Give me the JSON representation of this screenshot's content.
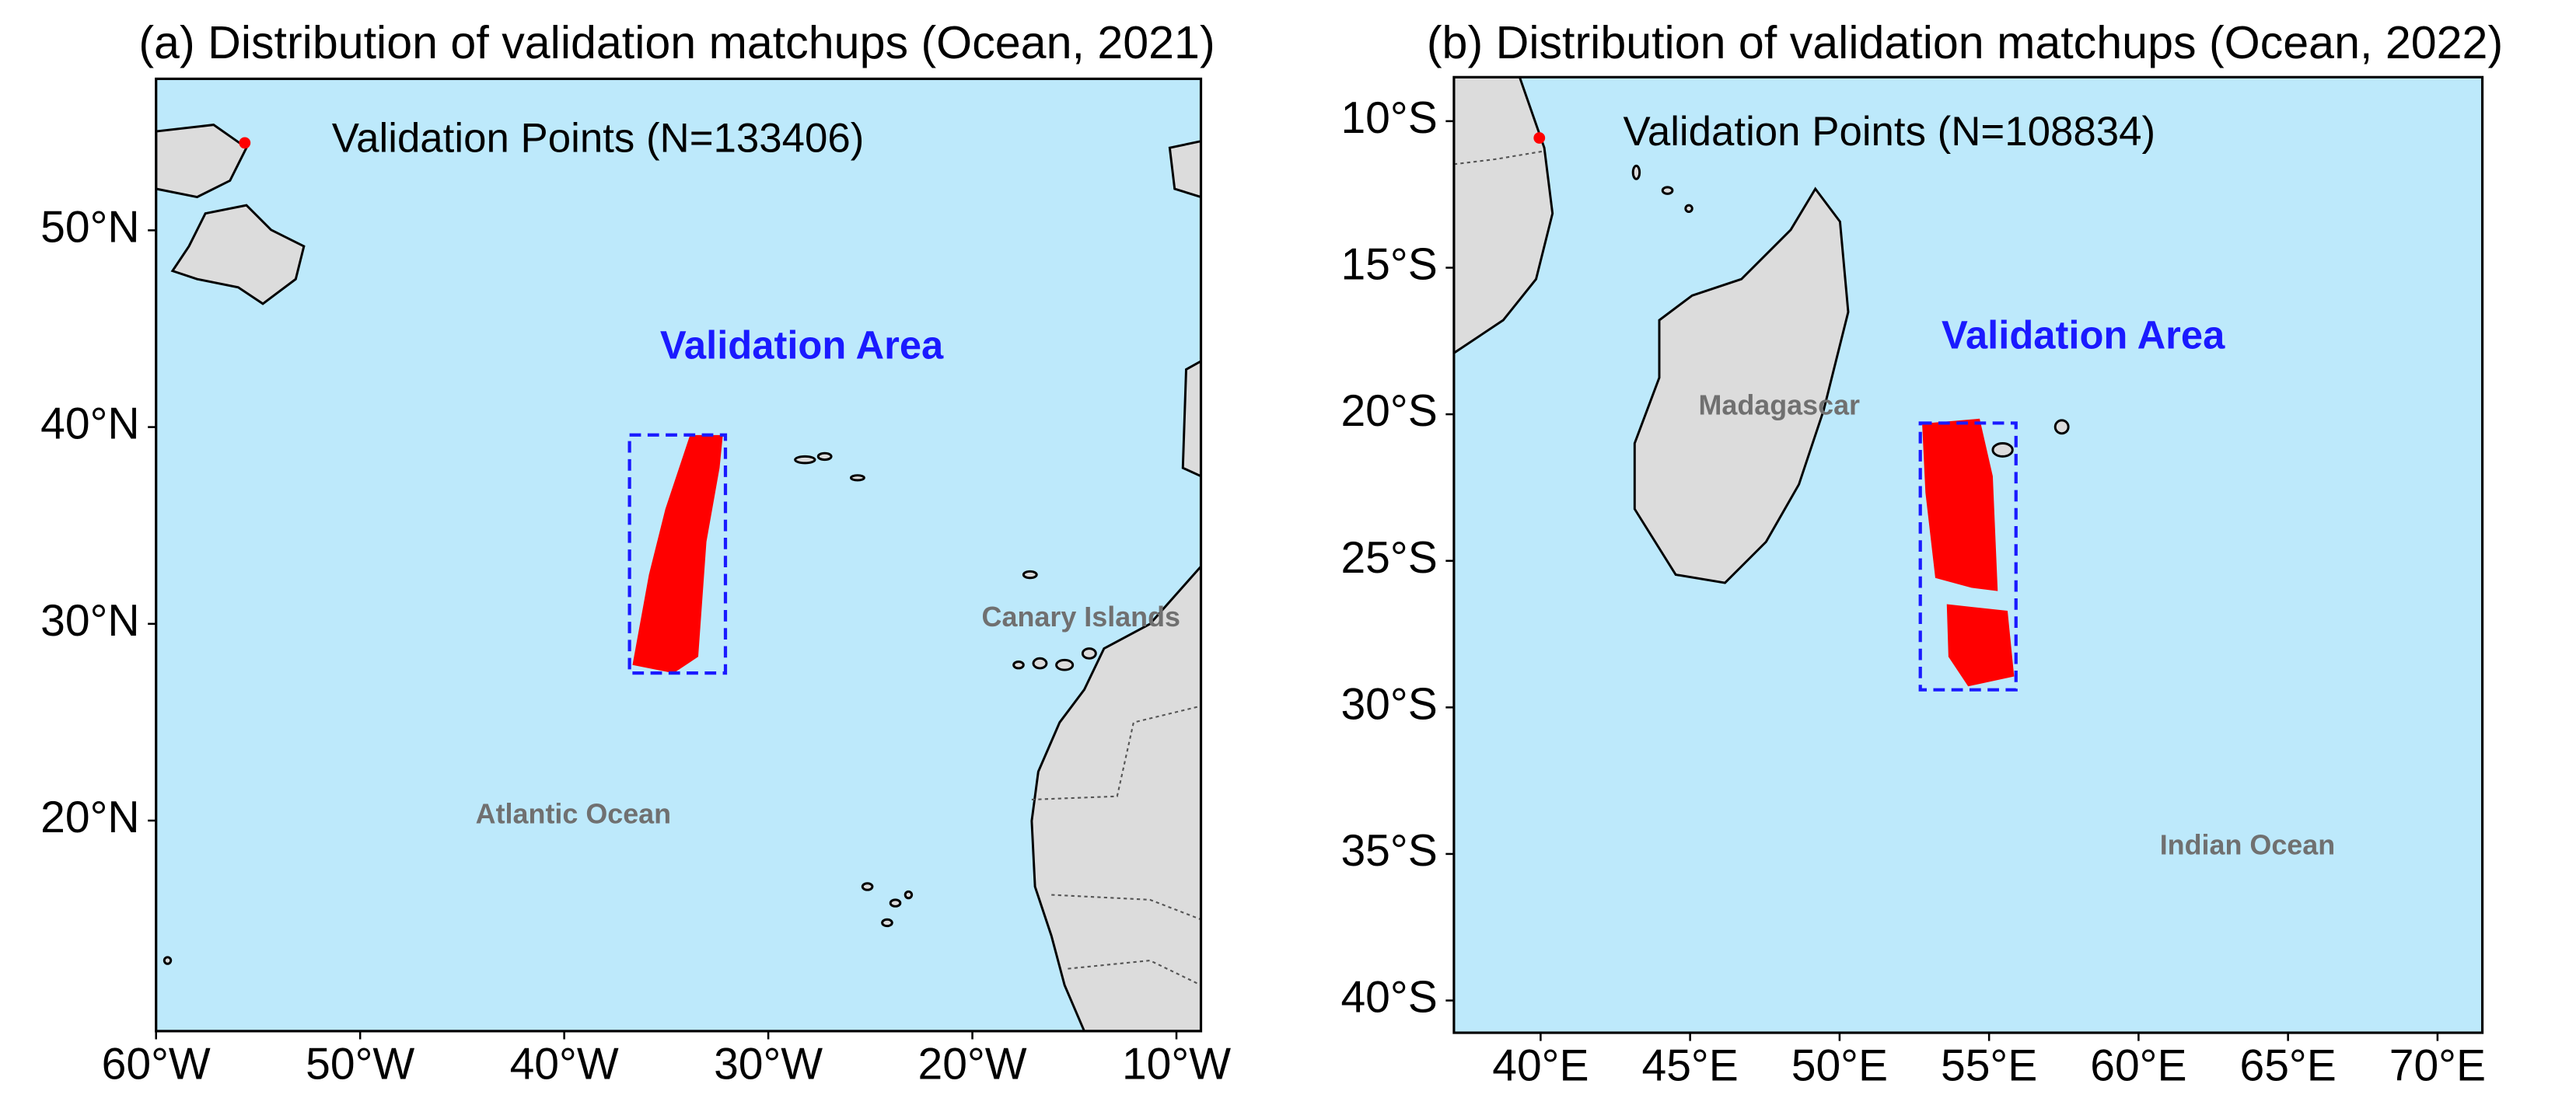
{
  "panels": [
    {
      "title": "(a) Distribution of validation matchups (Ocean, 2021)",
      "legend": "Validation Points (N=133406)",
      "area_label": "Validation Area",
      "places": [
        "Canary Islands",
        "Atlantic Ocean"
      ],
      "lonlim": [
        -60,
        -8.8
      ],
      "latlim": [
        9.3,
        57.7
      ],
      "box": {
        "lon": [
          -36.8,
          -32.1
        ],
        "lat": [
          27.5,
          39.6
        ]
      },
      "xticks": [
        {
          "value": -60,
          "label": "60°W"
        },
        {
          "value": -50,
          "label": "50°W"
        },
        {
          "value": -40,
          "label": "40°W"
        },
        {
          "value": -30,
          "label": "30°W"
        },
        {
          "value": -20,
          "label": "20°W"
        },
        {
          "value": -10,
          "label": "10°W"
        }
      ],
      "yticks": [
        {
          "value": 20,
          "label": "20°N"
        },
        {
          "value": 30,
          "label": "30°N"
        },
        {
          "value": 40,
          "label": "40°N"
        },
        {
          "value": 50,
          "label": "50°N"
        }
      ]
    },
    {
      "title": "(b) Distribution of validation matchups (Ocean, 2022)",
      "legend": "Validation Points (N=108834)",
      "area_label": "Validation Area",
      "places": [
        "Madagascar",
        "Indian Ocean"
      ],
      "lonlim": [
        37.1,
        71.5
      ],
      "latlim": [
        -41.1,
        -8.5
      ],
      "box": {
        "lon": [
          52.7,
          55.9
        ],
        "lat": [
          -29.4,
          -20.3
        ]
      },
      "xticks": [
        {
          "value": 40,
          "label": "40°E"
        },
        {
          "value": 45,
          "label": "45°E"
        },
        {
          "value": 50,
          "label": "50°E"
        },
        {
          "value": 55,
          "label": "55°E"
        },
        {
          "value": 60,
          "label": "60°E"
        },
        {
          "value": 65,
          "label": "65°E"
        },
        {
          "value": 70,
          "label": "70°E"
        }
      ],
      "yticks": [
        {
          "value": -40,
          "label": "40°S"
        },
        {
          "value": -35,
          "label": "35°S"
        },
        {
          "value": -30,
          "label": "30°S"
        },
        {
          "value": -25,
          "label": "25°S"
        },
        {
          "value": -20,
          "label": "20°S"
        },
        {
          "value": -15,
          "label": "15°S"
        },
        {
          "value": -10,
          "label": "10°S"
        }
      ]
    }
  ]
}
